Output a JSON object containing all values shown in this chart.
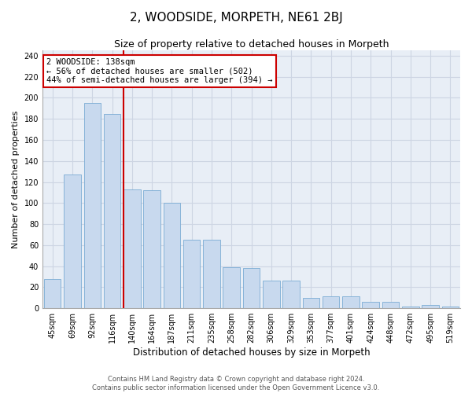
{
  "title": "2, WOODSIDE, MORPETH, NE61 2BJ",
  "subtitle": "Size of property relative to detached houses in Morpeth",
  "xlabel": "Distribution of detached houses by size in Morpeth",
  "ylabel": "Number of detached properties",
  "categories": [
    "45sqm",
    "69sqm",
    "92sqm",
    "116sqm",
    "140sqm",
    "164sqm",
    "187sqm",
    "211sqm",
    "235sqm",
    "258sqm",
    "282sqm",
    "306sqm",
    "329sqm",
    "353sqm",
    "377sqm",
    "401sqm",
    "424sqm",
    "448sqm",
    "472sqm",
    "495sqm",
    "519sqm"
  ],
  "values": [
    28,
    127,
    195,
    185,
    113,
    112,
    100,
    65,
    65,
    39,
    38,
    26,
    26,
    10,
    11,
    11,
    6,
    6,
    2,
    3,
    2
  ],
  "bar_color": "#c8d9ee",
  "bar_edge_color": "#7aabd4",
  "vline_color": "#cc0000",
  "annotation_text": "2 WOODSIDE: 138sqm\n← 56% of detached houses are smaller (502)\n44% of semi-detached houses are larger (394) →",
  "annotation_box_color": "#ffffff",
  "annotation_box_edge": "#cc0000",
  "grid_color": "#cdd5e3",
  "background_color": "#e8eef6",
  "footer_line1": "Contains HM Land Registry data © Crown copyright and database right 2024.",
  "footer_line2": "Contains public sector information licensed under the Open Government Licence v3.0.",
  "ylim": [
    0,
    245
  ],
  "yticks": [
    0,
    20,
    40,
    60,
    80,
    100,
    120,
    140,
    160,
    180,
    200,
    220,
    240
  ],
  "title_fontsize": 11,
  "subtitle_fontsize": 9,
  "tick_fontsize": 7,
  "ylabel_fontsize": 8,
  "xlabel_fontsize": 8.5,
  "footer_fontsize": 6,
  "annotation_fontsize": 7.5
}
